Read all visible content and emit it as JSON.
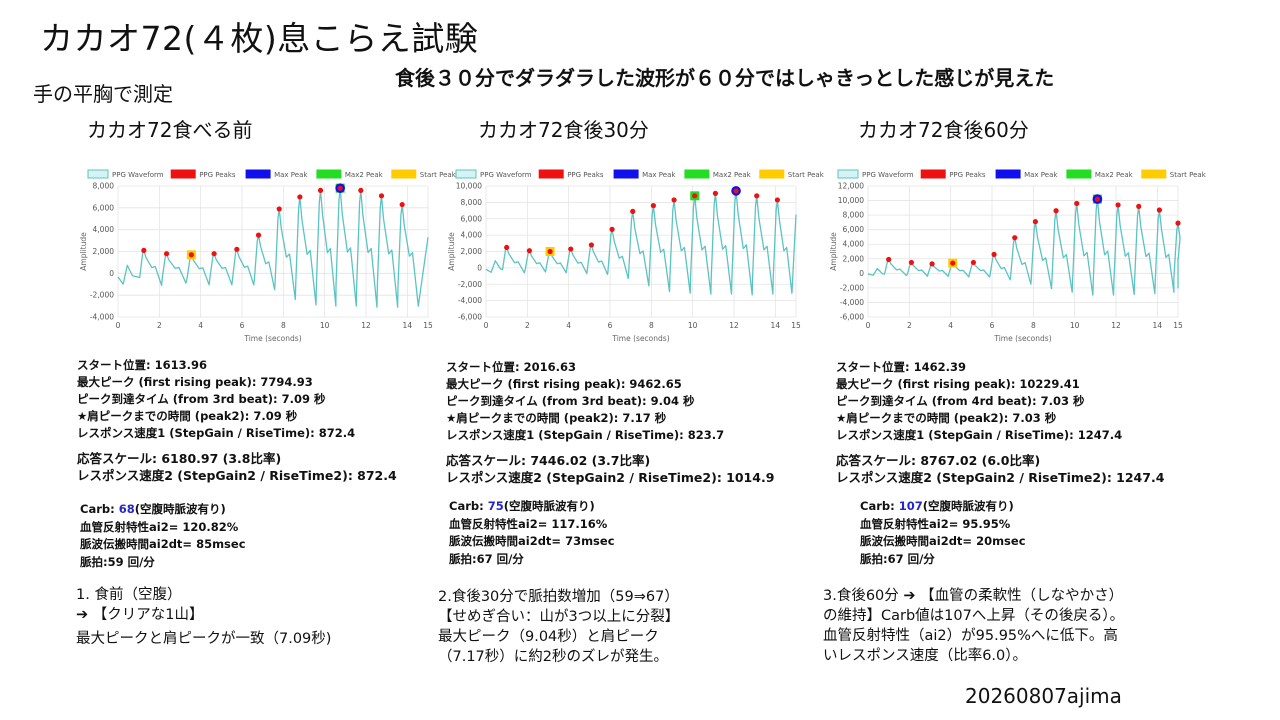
{
  "title": "カカオ72(４枚)息こらえ試験",
  "headline": "食後３０分でダラダラした波形が６０分ではしゃきっとした感じが見えた",
  "method": "手の平胸で測定",
  "author": "20260807ajima",
  "legend": [
    "PPG Waveform",
    "PPG Peaks",
    "Max Peak",
    "Max2 Peak",
    "Start Peak"
  ],
  "colors": {
    "waveform": "#5cc3c3",
    "peaks": "#ee1111",
    "max_peak": "#1010ee",
    "max2_peak": "#22dd22",
    "start_peak": "#ffcc00",
    "carb_value": "#2326c9"
  },
  "xlabel": "Time (seconds)",
  "ylabel": "Amplitude",
  "panels": [
    {
      "label": "カカオ72食べる前",
      "stats": [
        "スタート位置: 1613.96",
        "最大ピーク (first rising peak): 7794.93",
        "ピーク到達タイム (from 3rd beat): 7.09 秒",
        "★肩ピークまでの時間 (peak2): 7.09 秒",
        "レスポンス速度1 (StepGain / RiseTime): 872.4",
        "応答スケール: 6180.97 (3.8比率)",
        "レスポンス速度2 (StepGain2 / RiseTime2): 872.4"
      ],
      "carb_prefix": "Carb: ",
      "carb_value": "68",
      "carb_suffix": "(空腹時脈波有り)",
      "vascular": "血管反射特性ai2= 120.82%",
      "pwv": "脈波伝搬時間ai2dt= 85msec",
      "pulse": "脈拍:59 回/分",
      "note_lines": [
        "1. 食前（空腹）",
        "➔ 【クリアな1山】",
        "最大ピークと肩ピークが一致（7.09秒)"
      ]
    },
    {
      "label": "カカオ72食後30分",
      "stats": [
        "スタート位置: 2016.63",
        "最大ピーク (first rising peak): 9462.65",
        "ピーク到達タイム (from 3rd beat): 9.04 秒",
        "★肩ピークまでの時間 (peak2): 7.17 秒",
        "レスポンス速度1 (StepGain / RiseTime): 823.7",
        "応答スケール: 7446.02 (3.7比率)",
        "レスポンス速度2 (StepGain2 / RiseTime2): 1014.9"
      ],
      "carb_prefix": "Carb: ",
      "carb_value": "75",
      "carb_suffix": "(空腹時脈波有り)",
      "vascular": "血管反射特性ai2= 117.16%",
      "pwv": "脈波伝搬時間ai2dt= 73msec",
      "pulse": "脈拍:67 回/分",
      "note_lines": [
        "2.食後30分で脈拍数増加（59⇒67）",
        "【せめぎ合い：山が3つ以上に分裂】",
        "最大ピーク（9.04秒）と肩ピーク",
        "（7.17秒）に約2秒のズレが発生。"
      ]
    },
    {
      "label": "カカオ72食後60分",
      "stats": [
        "スタート位置: 1462.39",
        "最大ピーク (first rising peak): 10229.41",
        "ピーク到達タイム (from 4rd beat): 7.03 秒",
        "★肩ピークまでの時間 (peak2): 7.03 秒",
        "レスポンス速度1 (StepGain / RiseTime): 1247.4",
        "応答スケール: 8767.02 (6.0比率)",
        "レスポンス速度2 (StepGain2 / RiseTime2): 1247.4"
      ],
      "carb_prefix": "Carb: ",
      "carb_value": "107",
      "carb_suffix": "(空腹時脈波有り)",
      "vascular": "血管反射特性ai2= 95.95%",
      "pwv": "脈波伝搬時間ai2dt= 20msec",
      "pulse": "脈拍:67 回/分",
      "note_lines": [
        "3.食後60分 ➔ 【血管の柔軟性（しなやかさ）",
        "の維持】Carb値は107へ上昇（その後戻る）。",
        "血管反射特性（ai2）が95.95%へに低下。高",
        "いレスポンス速度（比率6.0）。"
      ]
    }
  ],
  "chart_data": [
    {
      "type": "line",
      "xlim": [
        0,
        15
      ],
      "ylim": [
        -4000,
        8000
      ],
      "yticks": [
        -4000,
        -2000,
        0,
        2000,
        4000,
        6000,
        8000
      ],
      "ytick_labels": [
        "-4,000",
        "-2,000",
        "0",
        "2,000",
        "4,000",
        "6,000",
        "8,000"
      ],
      "xticks": [
        0,
        2,
        4,
        6,
        8,
        10,
        12,
        14,
        15
      ],
      "peaks": [
        [
          1.25,
          2100
        ],
        [
          2.35,
          1800
        ],
        [
          3.55,
          1700
        ],
        [
          4.65,
          1800
        ],
        [
          5.75,
          2200
        ],
        [
          6.8,
          3500
        ],
        [
          7.8,
          5900
        ],
        [
          8.8,
          7000
        ],
        [
          9.8,
          7600
        ],
        [
          10.75,
          7800
        ],
        [
          11.75,
          7600
        ],
        [
          12.75,
          7100
        ],
        [
          13.75,
          6300
        ]
      ],
      "troughs": [
        -1100,
        -900,
        -1050,
        -1050,
        -1050,
        -1500,
        -2400,
        -2900,
        -3000,
        -3000,
        -3100,
        -3100,
        -3000
      ],
      "max_peak": [
        10.75,
        7800
      ],
      "max2_peak": [
        10.75,
        7800
      ],
      "start_peak": [
        3.55,
        1700
      ],
      "end_value": 3300
    },
    {
      "type": "line",
      "xlim": [
        0,
        15
      ],
      "ylim": [
        -6000,
        10000
      ],
      "yticks": [
        -6000,
        -4000,
        -2000,
        0,
        2000,
        4000,
        6000,
        8000,
        10000
      ],
      "ytick_labels": [
        "-6,000",
        "-4,000",
        "-2,000",
        "0",
        "2,000",
        "4,000",
        "6,000",
        "8,000",
        "10,000"
      ],
      "xticks": [
        0,
        2,
        4,
        6,
        8,
        10,
        12,
        14,
        15
      ],
      "peaks": [
        [
          1.0,
          2500
        ],
        [
          2.1,
          2100
        ],
        [
          3.1,
          2000
        ],
        [
          4.1,
          2300
        ],
        [
          5.1,
          2800
        ],
        [
          6.1,
          4700
        ],
        [
          7.1,
          6900
        ],
        [
          8.1,
          7600
        ],
        [
          9.1,
          8300
        ],
        [
          10.1,
          8800
        ],
        [
          11.1,
          9100
        ],
        [
          12.1,
          9400
        ],
        [
          13.1,
          8800
        ],
        [
          14.1,
          8300
        ]
      ],
      "troughs": [
        -600,
        -500,
        -600,
        -700,
        -800,
        -1300,
        -2200,
        -2900,
        -3100,
        -3200,
        -3200,
        -3300,
        -3200,
        -3100
      ],
      "max_peak": [
        12.1,
        9400
      ],
      "max2_peak": [
        10.1,
        8800
      ],
      "start_peak": [
        3.1,
        2000
      ],
      "end_value": 6500
    },
    {
      "type": "line",
      "xlim": [
        0,
        15
      ],
      "ylim": [
        -6000,
        12000
      ],
      "yticks": [
        -6000,
        -4000,
        -2000,
        0,
        2000,
        4000,
        6000,
        8000,
        10000,
        12000
      ],
      "ytick_labels": [
        "-6,000",
        "-4,000",
        "-2,000",
        "0",
        "2,000",
        "4,000",
        "6,000",
        "8,000",
        "10,000",
        "12,000"
      ],
      "xticks": [
        0,
        2,
        4,
        6,
        8,
        10,
        12,
        14,
        15
      ],
      "peaks": [
        [
          1.0,
          1900
        ],
        [
          2.1,
          1500
        ],
        [
          3.1,
          1300
        ],
        [
          4.1,
          1400
        ],
        [
          5.1,
          1500
        ],
        [
          6.1,
          2600
        ],
        [
          7.1,
          4900
        ],
        [
          8.1,
          7100
        ],
        [
          9.1,
          8600
        ],
        [
          10.1,
          9600
        ],
        [
          11.1,
          10200
        ],
        [
          12.1,
          9400
        ],
        [
          13.1,
          9200
        ],
        [
          14.1,
          8700
        ],
        [
          15.0,
          6900
        ]
      ],
      "troughs": [
        -300,
        -400,
        -400,
        -500,
        -500,
        -900,
        -1500,
        -2100,
        -2600,
        -3000,
        -3000,
        -2900,
        -2800,
        -2600,
        -2000
      ],
      "max_peak": [
        11.1,
        10200
      ],
      "max2_peak": [
        11.1,
        10200
      ],
      "start_peak": [
        4.1,
        1400
      ],
      "end_value": 0
    }
  ]
}
